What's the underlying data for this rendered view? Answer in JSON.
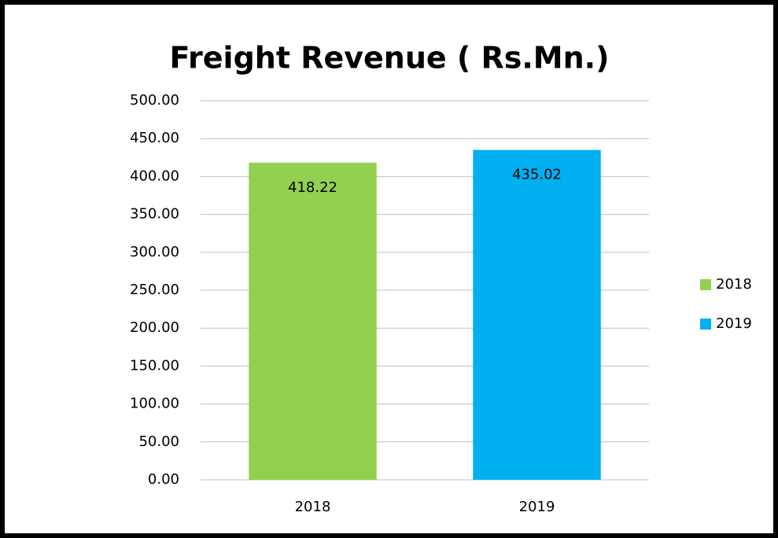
{
  "chart_data": {
    "type": "bar",
    "title": "Freight Revenue ( Rs.Mn.)",
    "categories": [
      "2018",
      "2019"
    ],
    "values": [
      418.22,
      435.02
    ],
    "colors": [
      "#92d050",
      "#00b0f0"
    ],
    "ylim": [
      0,
      500
    ],
    "yticks": [
      {
        "value": 0,
        "label": "0.00"
      },
      {
        "value": 50,
        "label": "50.00"
      },
      {
        "value": 100,
        "label": "100.00"
      },
      {
        "value": 150,
        "label": "150.00"
      },
      {
        "value": 200,
        "label": "200.00"
      },
      {
        "value": 250,
        "label": "250.00"
      },
      {
        "value": 300,
        "label": "300.00"
      },
      {
        "value": 350,
        "label": "350.00"
      },
      {
        "value": 400,
        "label": "400.00"
      },
      {
        "value": 450,
        "label": "450.00"
      },
      {
        "value": 500,
        "label": "500.00"
      }
    ],
    "grid": true,
    "legend": "right"
  }
}
